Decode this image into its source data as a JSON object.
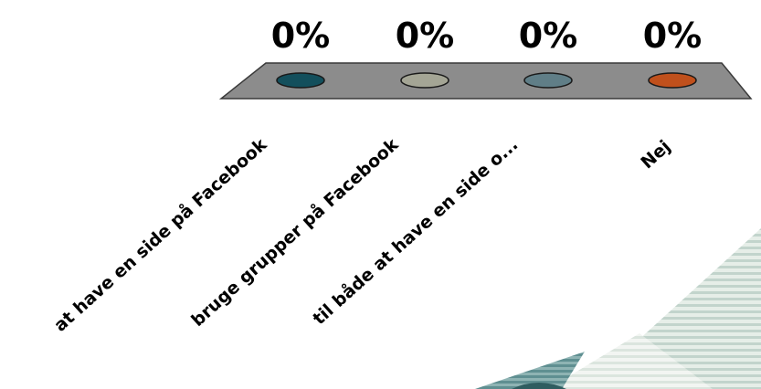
{
  "chart_data": {
    "type": "bar",
    "categories": [
      "at have en side på Facebook",
      "bruge grupper på Facebook",
      "til både at have en side o...",
      "Nej"
    ],
    "values": [
      0,
      0,
      0,
      0
    ],
    "value_labels": [
      "0%",
      "0%",
      "0%",
      "0%"
    ],
    "colors": [
      "#134f5c",
      "#a4a595",
      "#607e87",
      "#c0501c"
    ],
    "title": "",
    "xlabel": "",
    "ylabel": "",
    "ylim": [
      0,
      100
    ],
    "grid": false,
    "style": "3d-floor"
  },
  "theme": {
    "floor_fill": "#8c8c8c",
    "floor_stroke": "#3a3a3a",
    "stripe_light": "#dfe9e1",
    "stripe_dark": "#b3c9c3",
    "stripe_teal": "#7aa5a6"
  }
}
